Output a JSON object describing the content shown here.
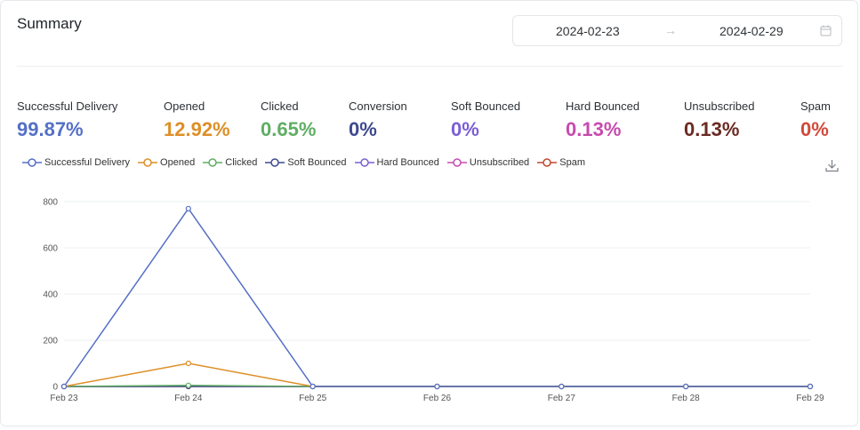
{
  "header": {
    "title": "Summary",
    "date_start": "2024-02-23",
    "date_end": "2024-02-29",
    "arrow": "→"
  },
  "stats": [
    {
      "label": "Successful Delivery",
      "value": "99.87%",
      "color": "#5470c6"
    },
    {
      "label": "Opened",
      "value": "12.92%",
      "color": "#dd8f27"
    },
    {
      "label": "Clicked",
      "value": "0.65%",
      "color": "#5fae64"
    },
    {
      "label": "Conversion",
      "value": "0%",
      "color": "#3e4a8f"
    },
    {
      "label": "Soft Bounced",
      "value": "0%",
      "color": "#7b5fd6"
    },
    {
      "label": "Hard Bounced",
      "value": "0.13%",
      "color": "#c74aae"
    },
    {
      "label": "Unsubscribed",
      "value": "0.13%",
      "color": "#6b2a22"
    },
    {
      "label": "Spam",
      "value": "0%",
      "color": "#d14a3a"
    }
  ],
  "chart_data": {
    "type": "line",
    "categories": [
      "Feb 23",
      "Feb 24",
      "Feb 25",
      "Feb 26",
      "Feb 27",
      "Feb 28",
      "Feb 29"
    ],
    "ylim": [
      0,
      800
    ],
    "yticks": [
      0,
      200,
      400,
      600,
      800
    ],
    "grid": true,
    "legend_position": "top-left",
    "series": [
      {
        "name": "Successful Delivery",
        "color": "#5470c6",
        "values": [
          0,
          770,
          0,
          0,
          0,
          0,
          0
        ]
      },
      {
        "name": "Opened",
        "color": "#dd8f27",
        "values": [
          0,
          100,
          0,
          0,
          0,
          0,
          0
        ]
      },
      {
        "name": "Clicked",
        "color": "#5fae64",
        "values": [
          0,
          5,
          0,
          0,
          0,
          0,
          0
        ]
      },
      {
        "name": "Soft Bounced",
        "color": "#3e4a8f",
        "values": [
          0,
          0,
          0,
          0,
          0,
          0,
          0
        ]
      },
      {
        "name": "Hard Bounced",
        "color": "#7b5fd6",
        "values": [
          0,
          1,
          0,
          0,
          0,
          0,
          0
        ]
      },
      {
        "name": "Unsubscribed",
        "color": "#c74aae",
        "values": [
          0,
          1,
          0,
          0,
          0,
          0,
          0
        ]
      },
      {
        "name": "Spam",
        "color": "#c2472f",
        "values": [
          0,
          0,
          0,
          0,
          0,
          0,
          0
        ]
      }
    ]
  }
}
